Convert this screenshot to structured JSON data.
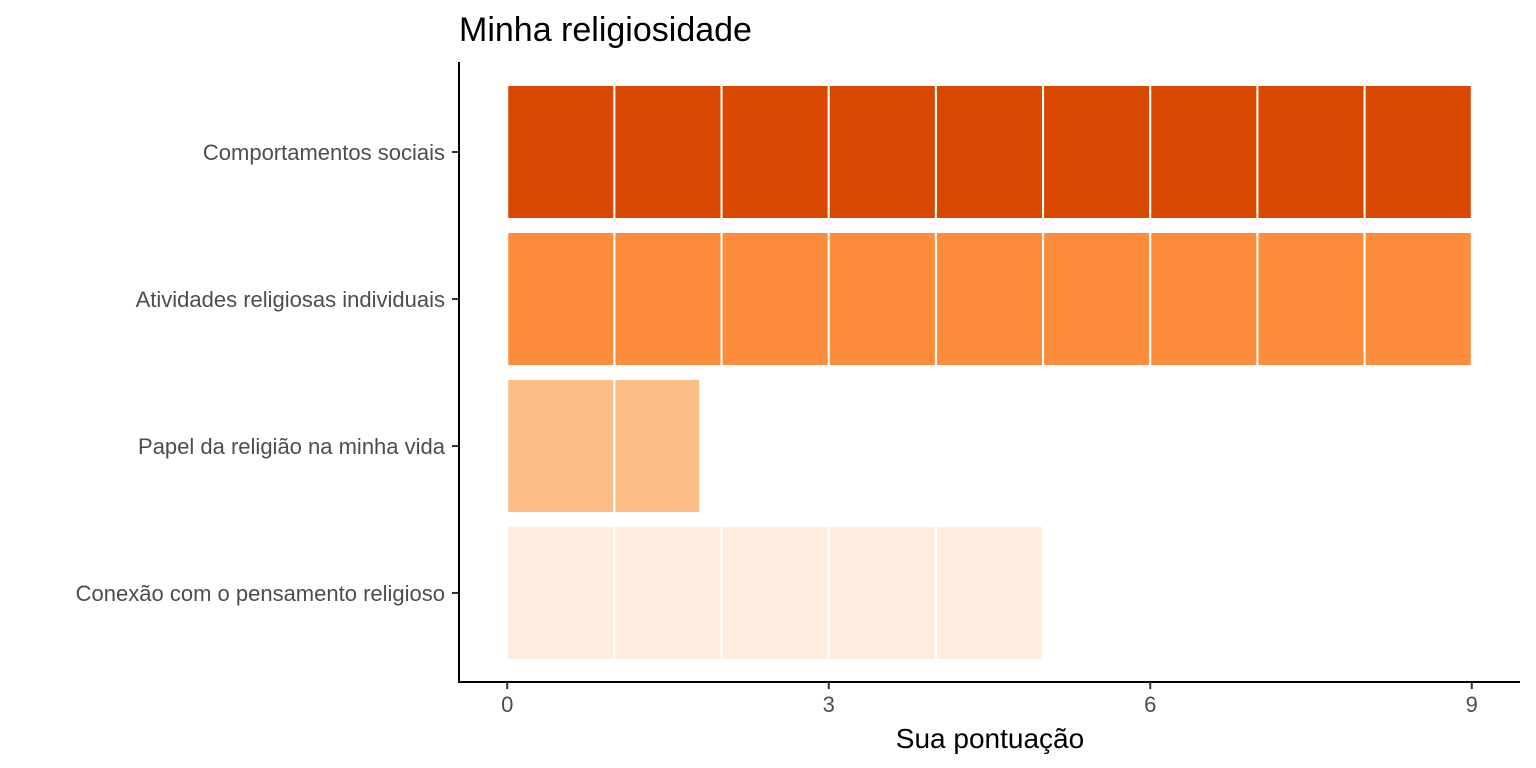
{
  "chart_data": {
    "type": "bar",
    "orientation": "horizontal",
    "title": "Minha religiosidade",
    "xlabel": "Sua pontuação",
    "ylabel": "",
    "xlim": [
      -0.45,
      9.45
    ],
    "x_ticks": [
      "0",
      "3",
      "6",
      "9"
    ],
    "x_tick_values": [
      0,
      3,
      6,
      9
    ],
    "grid": false,
    "legend": "none",
    "categories": [
      "Comportamentos sociais",
      "Atividades religiosas individuais",
      "Papel da religião na minha vida",
      "Conexão com o pensamento religioso"
    ],
    "values": [
      9,
      9,
      1.8,
      5
    ],
    "colors": [
      "#d94801",
      "#fd8d3c",
      "#fdbe85",
      "#feeddf"
    ],
    "segment_unit": 1
  }
}
